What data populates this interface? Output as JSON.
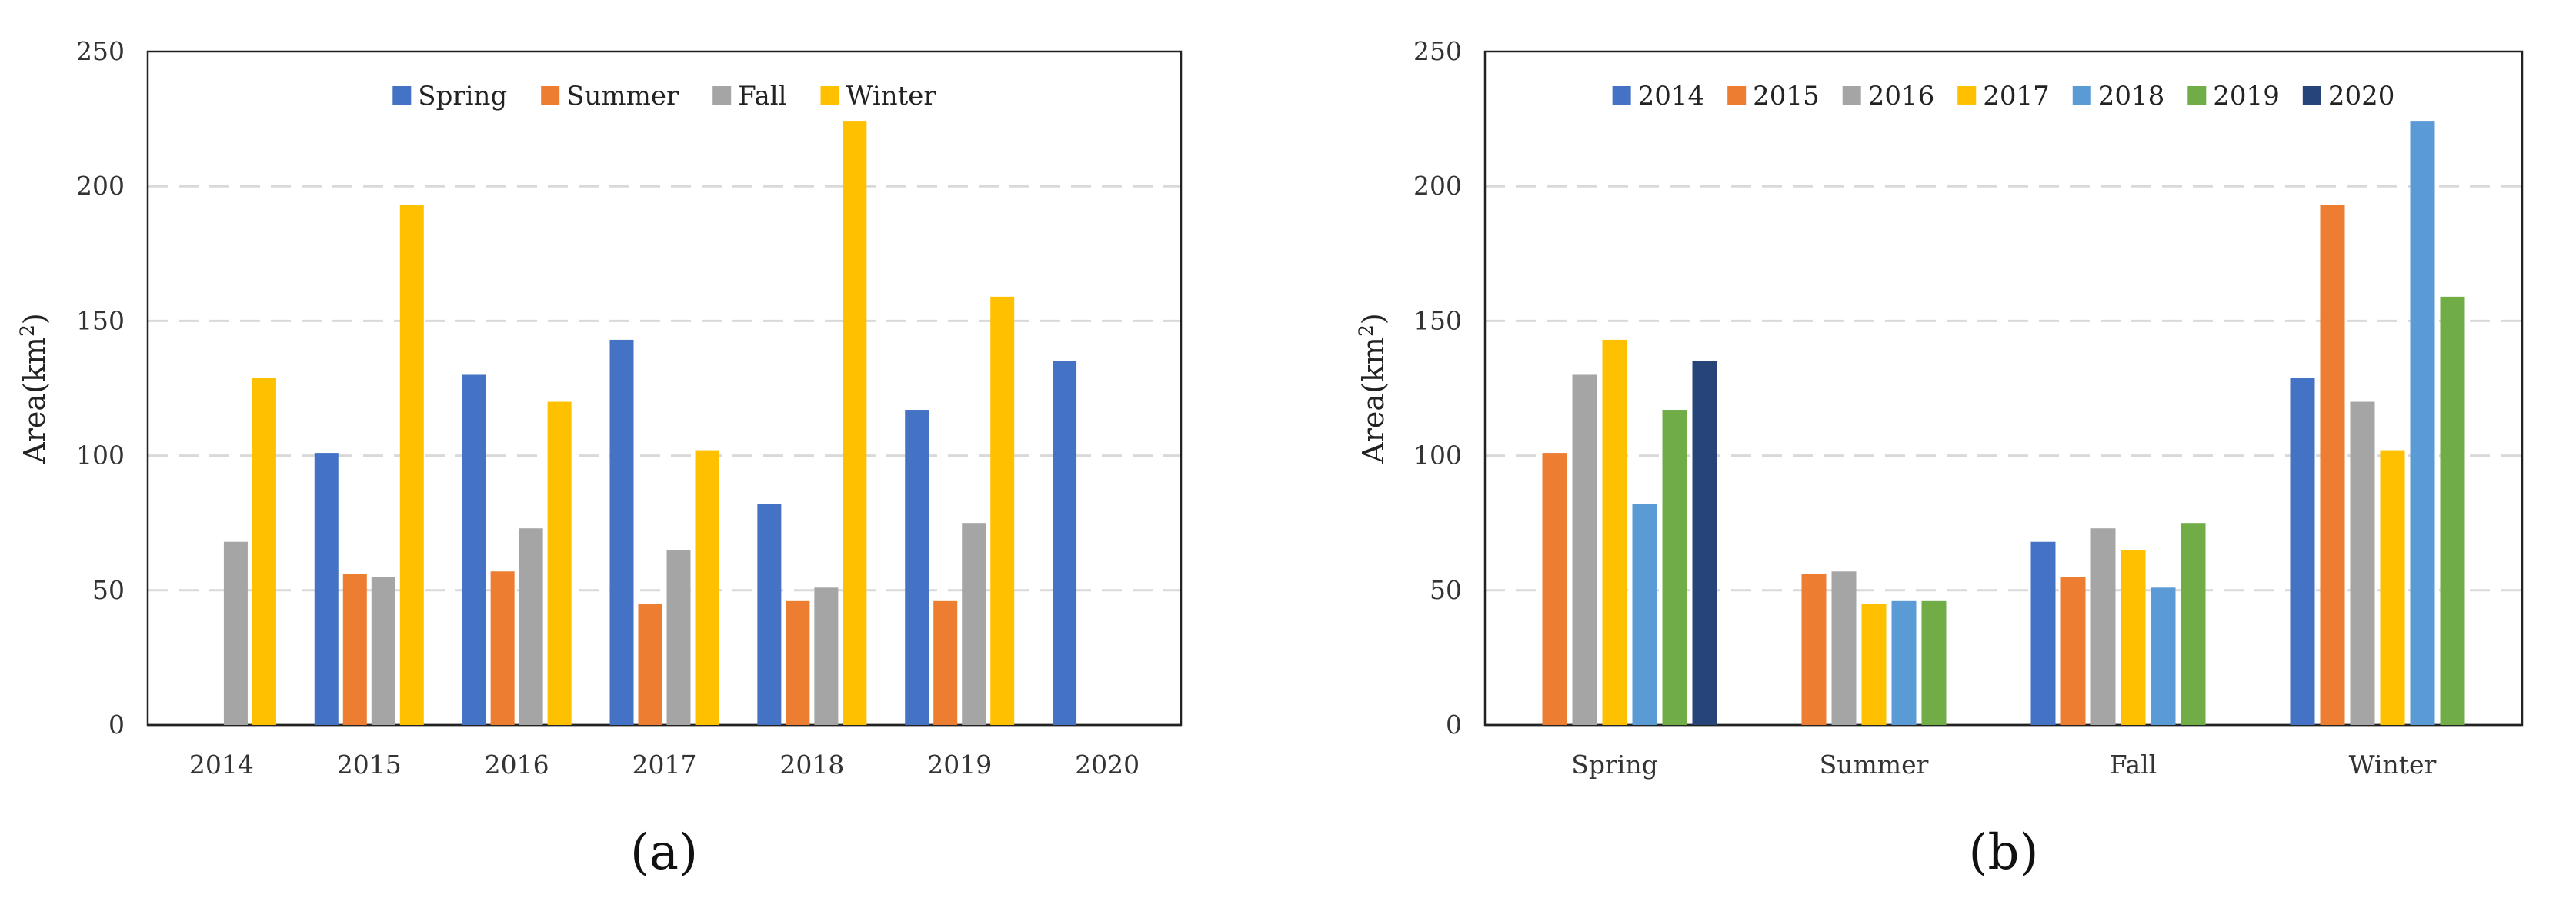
{
  "chart_data": [
    {
      "type": "bar",
      "panel_label": "(a)",
      "ylabel_main": "Area(km",
      "ylabel_sup": "2",
      "ylabel_close": ")",
      "ylim": [
        0,
        250
      ],
      "yticks": [
        "0",
        "50",
        "100",
        "150",
        "200",
        "250"
      ],
      "grid": true,
      "legend": "top-center",
      "categories": [
        "2014",
        "2015",
        "2016",
        "2017",
        "2018",
        "2019",
        "2020"
      ],
      "series": [
        {
          "name": "Spring",
          "color": "#4472c4",
          "values": [
            null,
            101,
            130,
            143,
            82,
            117,
            135
          ]
        },
        {
          "name": "Summer",
          "color": "#ed7d31",
          "values": [
            null,
            56,
            57,
            45,
            46,
            46,
            null
          ]
        },
        {
          "name": "Fall",
          "color": "#a5a5a5",
          "values": [
            68,
            55,
            73,
            65,
            51,
            75,
            null
          ]
        },
        {
          "name": "Winter",
          "color": "#ffc000",
          "values": [
            129,
            193,
            120,
            102,
            224,
            159,
            null
          ]
        }
      ]
    },
    {
      "type": "bar",
      "panel_label": "(b)",
      "ylabel_main": "Area(km",
      "ylabel_sup": "2",
      "ylabel_close": ")",
      "ylim": [
        0,
        250
      ],
      "yticks": [
        "0",
        "50",
        "100",
        "150",
        "200",
        "250"
      ],
      "grid": true,
      "legend": "top-center",
      "categories": [
        "Spring",
        "Summer",
        "Fall",
        "Winter"
      ],
      "series": [
        {
          "name": "2014",
          "color": "#4472c4",
          "values": [
            null,
            null,
            68,
            129
          ]
        },
        {
          "name": "2015",
          "color": "#ed7d31",
          "values": [
            101,
            56,
            55,
            193
          ]
        },
        {
          "name": "2016",
          "color": "#a5a5a5",
          "values": [
            130,
            57,
            73,
            120
          ]
        },
        {
          "name": "2017",
          "color": "#ffc000",
          "values": [
            143,
            45,
            65,
            102
          ]
        },
        {
          "name": "2018",
          "color": "#5b9bd5",
          "values": [
            82,
            46,
            51,
            224
          ]
        },
        {
          "name": "2019",
          "color": "#70ad47",
          "values": [
            117,
            46,
            75,
            159
          ]
        },
        {
          "name": "2020",
          "color": "#264478",
          "values": [
            135,
            null,
            null,
            null
          ]
        }
      ]
    }
  ]
}
